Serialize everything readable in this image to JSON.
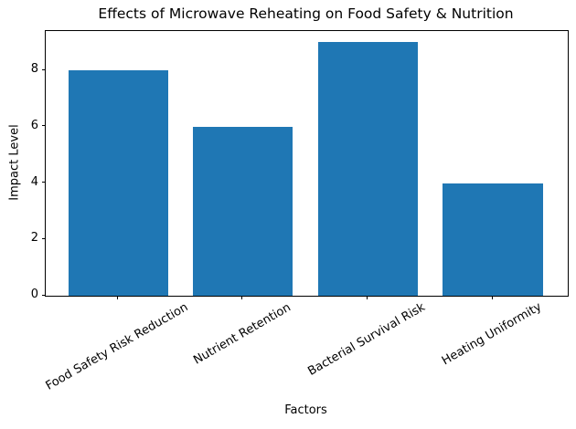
{
  "chart_data": {
    "type": "bar",
    "title": "Effects of Microwave Reheating on Food Safety & Nutrition",
    "xlabel": "Factors",
    "ylabel": "Impact Level",
    "categories": [
      "Food Safety Risk Reduction",
      "Nutrient Retention",
      "Bacterial Survival Risk",
      "Heating Uniformity"
    ],
    "values": [
      8,
      6,
      9,
      4
    ],
    "yticks": [
      0,
      2,
      4,
      6,
      8
    ],
    "ylim": [
      0,
      9.4
    ],
    "bar_color": "#1f77b4",
    "background_color": "#ffffff",
    "axis_color": "#000000",
    "x_tick_label_rotation_deg": 30,
    "grid": false,
    "legend_position": "none"
  }
}
